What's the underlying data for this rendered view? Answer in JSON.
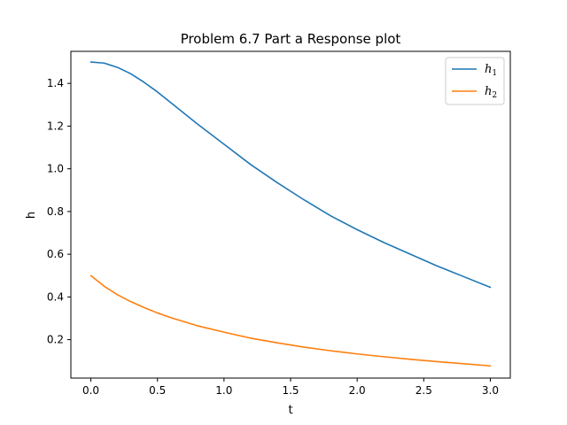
{
  "chart_data": {
    "type": "line",
    "title": "Problem 6.7 Part a Response plot",
    "xlabel": "t",
    "ylabel": "h",
    "xlim": [
      -0.15,
      3.15
    ],
    "ylim": [
      0.02,
      1.55
    ],
    "xticks": [
      0.0,
      0.5,
      1.0,
      1.5,
      2.0,
      2.5,
      3.0
    ],
    "xtick_labels": [
      "0.0",
      "0.5",
      "1.0",
      "1.5",
      "2.0",
      "2.5",
      "3.0"
    ],
    "yticks": [
      0.2,
      0.4,
      0.6,
      0.8,
      1.0,
      1.2,
      1.4
    ],
    "ytick_labels": [
      "0.2",
      "0.4",
      "0.6",
      "0.8",
      "1.0",
      "1.2",
      "1.4"
    ],
    "grid": false,
    "legend_position": "top-right",
    "series": [
      {
        "name": "h",
        "subscript": "1",
        "color": "#1f77b4",
        "x": [
          0.0,
          0.1,
          0.2,
          0.3,
          0.4,
          0.5,
          0.6,
          0.8,
          1.0,
          1.2,
          1.4,
          1.6,
          1.8,
          2.0,
          2.2,
          2.4,
          2.6,
          2.8,
          3.0
        ],
        "y": [
          1.5,
          1.495,
          1.475,
          1.445,
          1.405,
          1.36,
          1.31,
          1.21,
          1.115,
          1.02,
          0.935,
          0.855,
          0.78,
          0.715,
          0.655,
          0.6,
          0.545,
          0.495,
          0.445
        ]
      },
      {
        "name": "h",
        "subscript": "2",
        "color": "#ff7f0e",
        "x": [
          0.0,
          0.1,
          0.2,
          0.3,
          0.4,
          0.5,
          0.6,
          0.8,
          1.0,
          1.2,
          1.4,
          1.6,
          1.8,
          2.0,
          2.2,
          2.4,
          2.6,
          2.8,
          3.0
        ],
        "y": [
          0.5,
          0.45,
          0.41,
          0.378,
          0.35,
          0.325,
          0.303,
          0.265,
          0.235,
          0.207,
          0.185,
          0.165,
          0.148,
          0.133,
          0.12,
          0.108,
          0.097,
          0.087,
          0.077
        ]
      }
    ]
  }
}
